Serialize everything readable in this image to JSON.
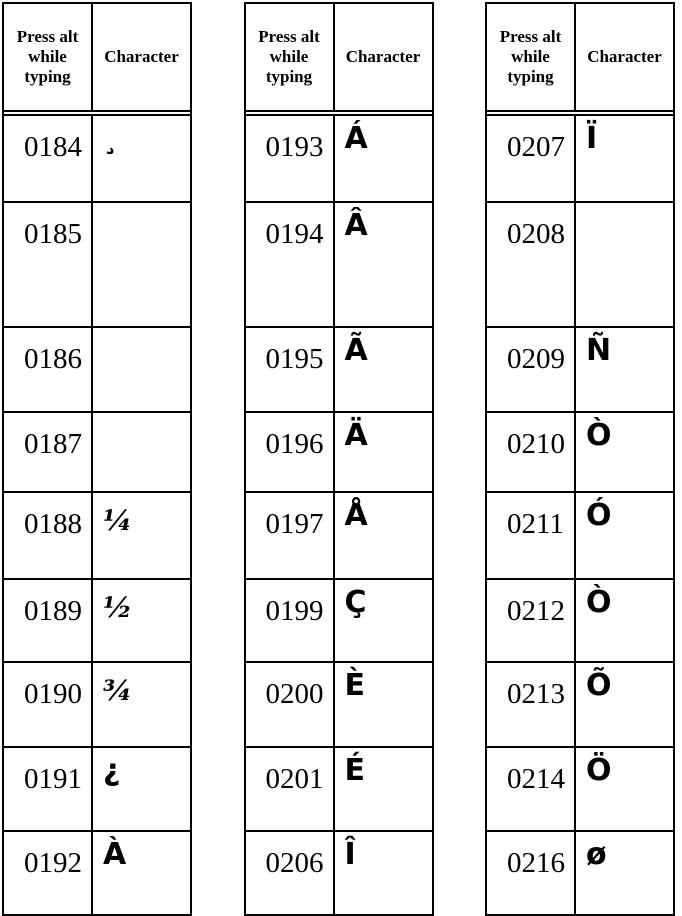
{
  "table_header": {
    "code_label": "Press alt while typing",
    "char_label": "Character"
  },
  "tables": [
    {
      "rows": [
        {
          "code": "0184",
          "char": "¸"
        },
        {
          "code": "0185",
          "char": ""
        },
        {
          "code": "0186",
          "char": ""
        },
        {
          "code": "0187",
          "char": ""
        },
        {
          "code": "0188",
          "char": "¼"
        },
        {
          "code": "0189",
          "char": "½"
        },
        {
          "code": "0190",
          "char": "¾"
        },
        {
          "code": "0191",
          "char": "¿"
        },
        {
          "code": "0192",
          "char": "À"
        }
      ]
    },
    {
      "rows": [
        {
          "code": "0193",
          "char": "Á"
        },
        {
          "code": "0194",
          "char": "Â"
        },
        {
          "code": "0195",
          "char": "Ã"
        },
        {
          "code": "0196",
          "char": "Ä"
        },
        {
          "code": "0197",
          "char": "Å"
        },
        {
          "code": "0199",
          "char": "Ç"
        },
        {
          "code": "0200",
          "char": "È"
        },
        {
          "code": "0201",
          "char": "É"
        },
        {
          "code": "0206",
          "char": "Î"
        }
      ]
    },
    {
      "rows": [
        {
          "code": "0207",
          "char": "Ï"
        },
        {
          "code": "0208",
          "char": ""
        },
        {
          "code": "0209",
          "char": "Ñ"
        },
        {
          "code": "0210",
          "char": "Ò"
        },
        {
          "code": "0211",
          "char": "Ó"
        },
        {
          "code": "0212",
          "char": "Ò"
        },
        {
          "code": "0213",
          "char": "Õ"
        },
        {
          "code": "0214",
          "char": "Ö"
        },
        {
          "code": "0216",
          "char": "ø"
        }
      ]
    }
  ]
}
